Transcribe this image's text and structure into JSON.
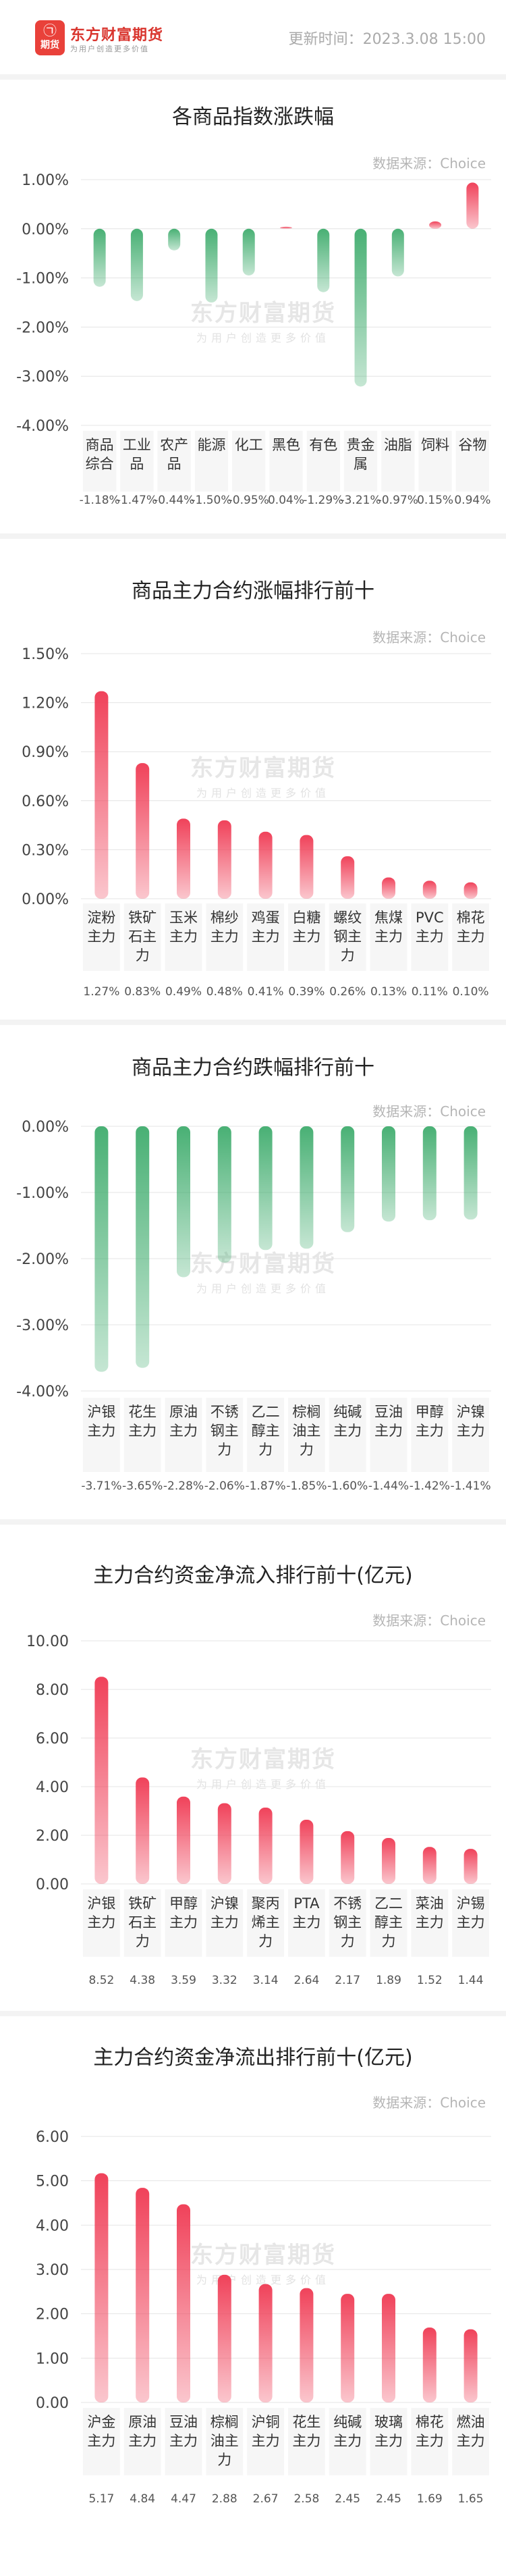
{
  "header": {
    "logo_glyph_top": "㉠",
    "logo_glyph_bottom": "期货",
    "brand_name": "东方财富期货",
    "brand_slogan": "为用户创造更多价值",
    "update_time": "更新时间：2023.3.08 15:00"
  },
  "watermark": {
    "name": "东方财富期货",
    "slogan": "为用户创造更多价值"
  },
  "colors": {
    "positive": "#f0425a",
    "negative": "#3fac6d",
    "background": "#f3f3f3"
  },
  "chart_data": [
    {
      "id": "chart1",
      "type": "bar",
      "title": "各商品指数涨跌幅",
      "source": "数据来源：Choice",
      "categories": [
        [
          "商品",
          "综合"
        ],
        [
          "工业",
          "品"
        ],
        [
          "农产",
          "品"
        ],
        [
          "能源"
        ],
        [
          "化工"
        ],
        [
          "黑色"
        ],
        [
          "有色"
        ],
        [
          "贵金",
          "属"
        ],
        [
          "油脂"
        ],
        [
          "饲料"
        ],
        [
          "谷物"
        ]
      ],
      "values": [
        -1.18,
        -1.47,
        -0.44,
        -1.5,
        -0.95,
        0.04,
        -1.29,
        -3.21,
        -0.97,
        0.15,
        0.94
      ],
      "value_labels": [
        "-1.18%",
        "-1.47%",
        "-0.44%",
        "-1.50%",
        "-0.95%",
        "0.04%",
        "-1.29%",
        "-3.21%",
        "-0.97%",
        "0.15%",
        "0.94%"
      ],
      "yticks": [
        "1.00%",
        "0.00%",
        "-1.00%",
        "-2.00%",
        "-3.00%",
        "-4.00%"
      ],
      "ylim": [
        -4,
        1
      ]
    },
    {
      "id": "chart2",
      "type": "bar",
      "title": "商品主力合约涨幅排行前十",
      "source": "数据来源：Choice",
      "categories": [
        [
          "淀粉",
          "主力"
        ],
        [
          "铁矿",
          "石主",
          "力"
        ],
        [
          "玉米",
          "主力"
        ],
        [
          "棉纱",
          "主力"
        ],
        [
          "鸡蛋",
          "主力"
        ],
        [
          "白糖",
          "主力"
        ],
        [
          "螺纹",
          "钢主",
          "力"
        ],
        [
          "焦煤",
          "主力"
        ],
        [
          "PVC",
          "主力"
        ],
        [
          "棉花",
          "主力"
        ]
      ],
      "values": [
        1.27,
        0.83,
        0.49,
        0.48,
        0.41,
        0.39,
        0.26,
        0.13,
        0.11,
        0.1
      ],
      "value_labels": [
        "1.27%",
        "0.83%",
        "0.49%",
        "0.48%",
        "0.41%",
        "0.39%",
        "0.26%",
        "0.13%",
        "0.11%",
        "0.10%"
      ],
      "yticks": [
        "1.50%",
        "1.20%",
        "0.90%",
        "0.60%",
        "0.30%",
        "0.00%"
      ],
      "ylim": [
        0,
        1.5
      ]
    },
    {
      "id": "chart3",
      "type": "bar",
      "title": "商品主力合约跌幅排行前十",
      "source": "数据来源：Choice",
      "categories": [
        [
          "沪银",
          "主力"
        ],
        [
          "花生",
          "主力"
        ],
        [
          "原油",
          "主力"
        ],
        [
          "不锈",
          "钢主",
          "力"
        ],
        [
          "乙二",
          "醇主",
          "力"
        ],
        [
          "棕榈",
          "油主",
          "力"
        ],
        [
          "纯碱",
          "主力"
        ],
        [
          "豆油",
          "主力"
        ],
        [
          "甲醇",
          "主力"
        ],
        [
          "沪镍",
          "主力"
        ]
      ],
      "values": [
        -3.71,
        -3.65,
        -2.28,
        -2.06,
        -1.87,
        -1.85,
        -1.6,
        -1.44,
        -1.42,
        -1.41
      ],
      "value_labels": [
        "-3.71%",
        "-3.65%",
        "-2.28%",
        "-2.06%",
        "-1.87%",
        "-1.85%",
        "-1.60%",
        "-1.44%",
        "-1.42%",
        "-1.41%"
      ],
      "yticks": [
        "0.00%",
        "-1.00%",
        "-2.00%",
        "-3.00%",
        "-4.00%"
      ],
      "ylim": [
        -4,
        0
      ]
    },
    {
      "id": "chart4",
      "type": "bar",
      "title": "主力合约资金净流入排行前十(亿元)",
      "source": "数据来源：Choice",
      "categories": [
        [
          "沪银",
          "主力"
        ],
        [
          "铁矿",
          "石主",
          "力"
        ],
        [
          "甲醇",
          "主力"
        ],
        [
          "沪镍",
          "主力"
        ],
        [
          "聚丙",
          "烯主",
          "力"
        ],
        [
          "PTA",
          "主力"
        ],
        [
          "不锈",
          "钢主",
          "力"
        ],
        [
          "乙二",
          "醇主",
          "力"
        ],
        [
          "菜油",
          "主力"
        ],
        [
          "沪锡",
          "主力"
        ]
      ],
      "values": [
        8.52,
        4.38,
        3.59,
        3.32,
        3.14,
        2.64,
        2.17,
        1.89,
        1.52,
        1.44
      ],
      "value_labels": [
        "8.52",
        "4.38",
        "3.59",
        "3.32",
        "3.14",
        "2.64",
        "2.17",
        "1.89",
        "1.52",
        "1.44"
      ],
      "yticks": [
        "10.00",
        "8.00",
        "6.00",
        "4.00",
        "2.00",
        "0.00"
      ],
      "ylim": [
        0,
        10
      ]
    },
    {
      "id": "chart5",
      "type": "bar",
      "title": "主力合约资金净流出排行前十(亿元)",
      "source": "数据来源：Choice",
      "categories": [
        [
          "沪金",
          "主力"
        ],
        [
          "原油",
          "主力"
        ],
        [
          "豆油",
          "主力"
        ],
        [
          "棕榈",
          "油主",
          "力"
        ],
        [
          "沪铜",
          "主力"
        ],
        [
          "花生",
          "主力"
        ],
        [
          "纯碱",
          "主力"
        ],
        [
          "玻璃",
          "主力"
        ],
        [
          "棉花",
          "主力"
        ],
        [
          "燃油",
          "主力"
        ]
      ],
      "values": [
        5.17,
        4.84,
        4.47,
        2.88,
        2.67,
        2.58,
        2.45,
        2.45,
        1.69,
        1.65
      ],
      "value_labels": [
        "5.17",
        "4.84",
        "4.47",
        "2.88",
        "2.67",
        "2.58",
        "2.45",
        "2.45",
        "1.69",
        "1.65"
      ],
      "yticks": [
        "6.00",
        "5.00",
        "4.00",
        "3.00",
        "2.00",
        "1.00",
        "0.00"
      ],
      "ylim": [
        0,
        6
      ]
    }
  ]
}
